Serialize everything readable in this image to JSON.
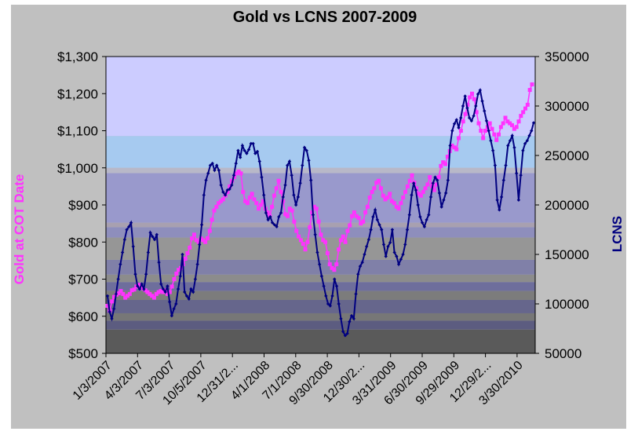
{
  "chart_data": {
    "type": "line",
    "title": "Gold vs LCNS  2007-2009",
    "ylabel_left": "Gold at COT Date",
    "ylabel_right": "LCNS",
    "ylim_left": [
      500,
      1300
    ],
    "ylim_right": [
      50000,
      350000
    ],
    "yticks_left": [
      "$500",
      "$600",
      "$700",
      "$800",
      "$900",
      "$1,000",
      "$1,100",
      "$1,200",
      "$1,300"
    ],
    "yticks_right": [
      "50000",
      "100000",
      "150000",
      "200000",
      "250000",
      "300000",
      "350000"
    ],
    "xticks": [
      "1/3/2007",
      "4/3/2007",
      "7/3/2007",
      "10/5/2007",
      "12/31/2...",
      "4/1/2008",
      "7/1/2008",
      "9/30/2008",
      "12/30/2...",
      "3/31/2009",
      "6/30/2009",
      "9/29/2009",
      "12/29/2...",
      "3/30/2010"
    ],
    "grid": false,
    "colors": {
      "gold": "#ff33ff",
      "lcns": "#000080"
    },
    "series": [
      {
        "name": "Gold at COT Date",
        "axis": "left",
        "values": [
          628,
          615,
          640,
          652,
          658,
          662,
          668,
          660,
          650,
          655,
          660,
          670,
          672,
          680,
          685,
          682,
          675,
          670,
          665,
          660,
          655,
          650,
          660,
          665,
          668,
          665,
          670,
          660,
          665,
          680,
          700,
          715,
          725,
          730,
          740,
          755,
          770,
          785,
          810,
          820,
          805,
          800,
          810,
          805,
          800,
          810,
          830,
          860,
          885,
          895,
          905,
          910,
          915,
          925,
          935,
          950,
          965,
          975,
          985,
          990,
          985,
          935,
          910,
          905,
          920,
          930,
          915,
          905,
          890,
          900,
          910,
          890,
          880,
          870,
          895,
          925,
          945,
          965,
          935,
          910,
          875,
          870,
          890,
          885,
          855,
          830,
          815,
          805,
          795,
          780,
          800,
          840,
          880,
          895,
          890,
          855,
          820,
          805,
          800,
          770,
          740,
          730,
          725,
          740,
          780,
          805,
          815,
          800,
          830,
          845,
          870,
          880,
          870,
          865,
          850,
          855,
          880,
          895,
          920,
          935,
          945,
          960,
          965,
          945,
          925,
          915,
          920,
          930,
          910,
          905,
          895,
          890,
          905,
          920,
          935,
          950,
          965,
          980,
          960,
          945,
          930,
          925,
          935,
          945,
          955,
          975,
          950,
          940,
          955,
          975,
          1005,
          1015,
          1010,
          1030,
          1045,
          1060,
          1055,
          1050,
          1080,
          1100,
          1125,
          1145,
          1170,
          1190,
          1200,
          1185,
          1150,
          1120,
          1100,
          1080,
          1100,
          1110,
          1120,
          1105,
          1090,
          1075,
          1090,
          1110,
          1120,
          1135,
          1125,
          1120,
          1115,
          1105,
          1110,
          1125,
          1140,
          1150,
          1160,
          1170,
          1210,
          1225
        ]
      },
      {
        "name": "LCNS",
        "axis": "right",
        "values": [
          108000,
          92000,
          85000,
          95000,
          110000,
          125000,
          140000,
          152000,
          165000,
          175000,
          178000,
          182000,
          158000,
          130000,
          118000,
          115000,
          120000,
          115000,
          130000,
          152000,
          172000,
          168000,
          165000,
          170000,
          142000,
          120000,
          115000,
          112000,
          118000,
          102000,
          88000,
          95000,
          100000,
          115000,
          128000,
          150000,
          112000,
          108000,
          105000,
          115000,
          112000,
          125000,
          140000,
          160000,
          180000,
          210000,
          225000,
          232000,
          240000,
          242000,
          235000,
          240000,
          235000,
          220000,
          213000,
          210000,
          215000,
          216000,
          220000,
          230000,
          242000,
          255000,
          248000,
          260000,
          255000,
          252000,
          256000,
          262000,
          262000,
          252000,
          254000,
          244000,
          228000,
          210000,
          192000,
          185000,
          188000,
          182000,
          180000,
          178000,
          188000,
          192000,
          208000,
          220000,
          240000,
          244000,
          230000,
          210000,
          200000,
          208000,
          222000,
          240000,
          258000,
          255000,
          245000,
          225000,
          190000,
          170000,
          152000,
          140000,
          128000,
          118000,
          108000,
          100000,
          98000,
          108000,
          125000,
          118000,
          100000,
          85000,
          72000,
          68000,
          70000,
          82000,
          88000,
          85000,
          110000,
          130000,
          138000,
          142000,
          150000,
          158000,
          165000,
          175000,
          188000,
          195000,
          185000,
          180000,
          175000,
          160000,
          148000,
          158000,
          162000,
          175000,
          152000,
          148000,
          140000,
          145000,
          150000,
          160000,
          175000,
          190000,
          210000,
          222000,
          215000,
          200000,
          188000,
          182000,
          178000,
          185000,
          190000,
          208000,
          222000,
          228000,
          225000,
          212000,
          198000,
          205000,
          212000,
          225000,
          260000,
          275000,
          282000,
          286000,
          278000,
          288000,
          300000,
          310000,
          298000,
          288000,
          285000,
          290000,
          300000,
          312000,
          316000,
          305000,
          295000,
          285000,
          275000,
          265000,
          255000,
          240000,
          205000,
          195000,
          208000,
          225000,
          240000,
          260000,
          265000,
          270000,
          258000,
          232000,
          205000,
          230000,
          255000,
          262000,
          265000,
          270000,
          275000,
          283000
        ]
      }
    ]
  }
}
